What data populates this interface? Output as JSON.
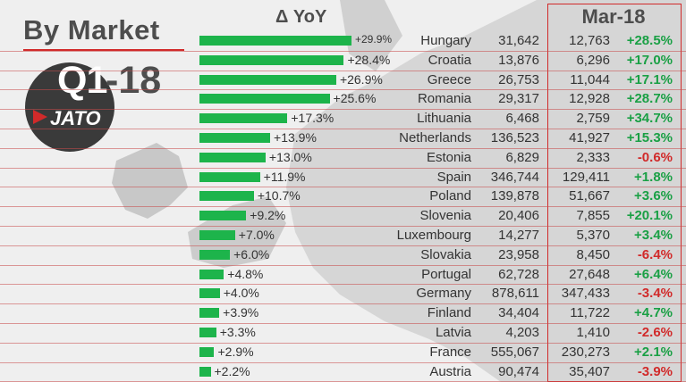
{
  "title": "By Market",
  "badge": {
    "quarter": "Q1",
    "year": "-18",
    "brand": "JATO"
  },
  "columns": {
    "yoy_header": "Δ YoY",
    "month_header": "Mar-18"
  },
  "colors": {
    "bar": "#1db44b",
    "positive": "#1aa045",
    "negative": "#d12a2a",
    "grid": "#c94a4a"
  },
  "chart_data": {
    "type": "bar",
    "categories": [
      "Hungary",
      "Croatia",
      "Greece",
      "Romania",
      "Lithuania",
      "Netherlands",
      "Estonia",
      "Spain",
      "Poland",
      "Slovenia",
      "Luxembourg",
      "Slovakia",
      "Portugal",
      "Germany",
      "Finland",
      "Latvia",
      "France",
      "Austria"
    ],
    "series": [
      {
        "name": "Δ YoY",
        "values": [
          29.9,
          28.4,
          26.9,
          25.6,
          17.3,
          13.9,
          13.0,
          11.9,
          10.7,
          9.2,
          7.0,
          6.0,
          4.8,
          4.0,
          3.9,
          3.3,
          2.9,
          2.2
        ]
      }
    ]
  },
  "rows": [
    {
      "country": "Hungary",
      "yoy": "+29.9%",
      "q1": "31,642",
      "mar": "12,763",
      "mar_chg": "+28.5%"
    },
    {
      "country": "Croatia",
      "yoy": "+28.4%",
      "q1": "13,876",
      "mar": "6,296",
      "mar_chg": "+17.0%"
    },
    {
      "country": "Greece",
      "yoy": "+26.9%",
      "q1": "26,753",
      "mar": "11,044",
      "mar_chg": "+17.1%"
    },
    {
      "country": "Romania",
      "yoy": "+25.6%",
      "q1": "29,317",
      "mar": "12,928",
      "mar_chg": "+28.7%"
    },
    {
      "country": "Lithuania",
      "yoy": "+17.3%",
      "q1": "6,468",
      "mar": "2,759",
      "mar_chg": "+34.7%"
    },
    {
      "country": "Netherlands",
      "yoy": "+13.9%",
      "q1": "136,523",
      "mar": "41,927",
      "mar_chg": "+15.3%"
    },
    {
      "country": "Estonia",
      "yoy": "+13.0%",
      "q1": "6,829",
      "mar": "2,333",
      "mar_chg": "-0.6%"
    },
    {
      "country": "Spain",
      "yoy": "+11.9%",
      "q1": "346,744",
      "mar": "129,411",
      "mar_chg": "+1.8%"
    },
    {
      "country": "Poland",
      "yoy": "+10.7%",
      "q1": "139,878",
      "mar": "51,667",
      "mar_chg": "+3.6%"
    },
    {
      "country": "Slovenia",
      "yoy": "+9.2%",
      "q1": "20,406",
      "mar": "7,855",
      "mar_chg": "+20.1%"
    },
    {
      "country": "Luxembourg",
      "yoy": "+7.0%",
      "q1": "14,277",
      "mar": "5,370",
      "mar_chg": "+3.4%"
    },
    {
      "country": "Slovakia",
      "yoy": "+6.0%",
      "q1": "23,958",
      "mar": "8,450",
      "mar_chg": "-6.4%"
    },
    {
      "country": "Portugal",
      "yoy": "+4.8%",
      "q1": "62,728",
      "mar": "27,648",
      "mar_chg": "+6.4%"
    },
    {
      "country": "Germany",
      "yoy": "+4.0%",
      "q1": "878,611",
      "mar": "347,433",
      "mar_chg": "-3.4%"
    },
    {
      "country": "Finland",
      "yoy": "+3.9%",
      "q1": "34,404",
      "mar": "11,722",
      "mar_chg": "+4.7%"
    },
    {
      "country": "Latvia",
      "yoy": "+3.3%",
      "q1": "4,203",
      "mar": "1,410",
      "mar_chg": "-2.6%"
    },
    {
      "country": "France",
      "yoy": "+2.9%",
      "q1": "555,067",
      "mar": "230,273",
      "mar_chg": "+2.1%"
    },
    {
      "country": "Austria",
      "yoy": "+2.2%",
      "q1": "90,474",
      "mar": "35,407",
      "mar_chg": "-3.9%"
    }
  ]
}
